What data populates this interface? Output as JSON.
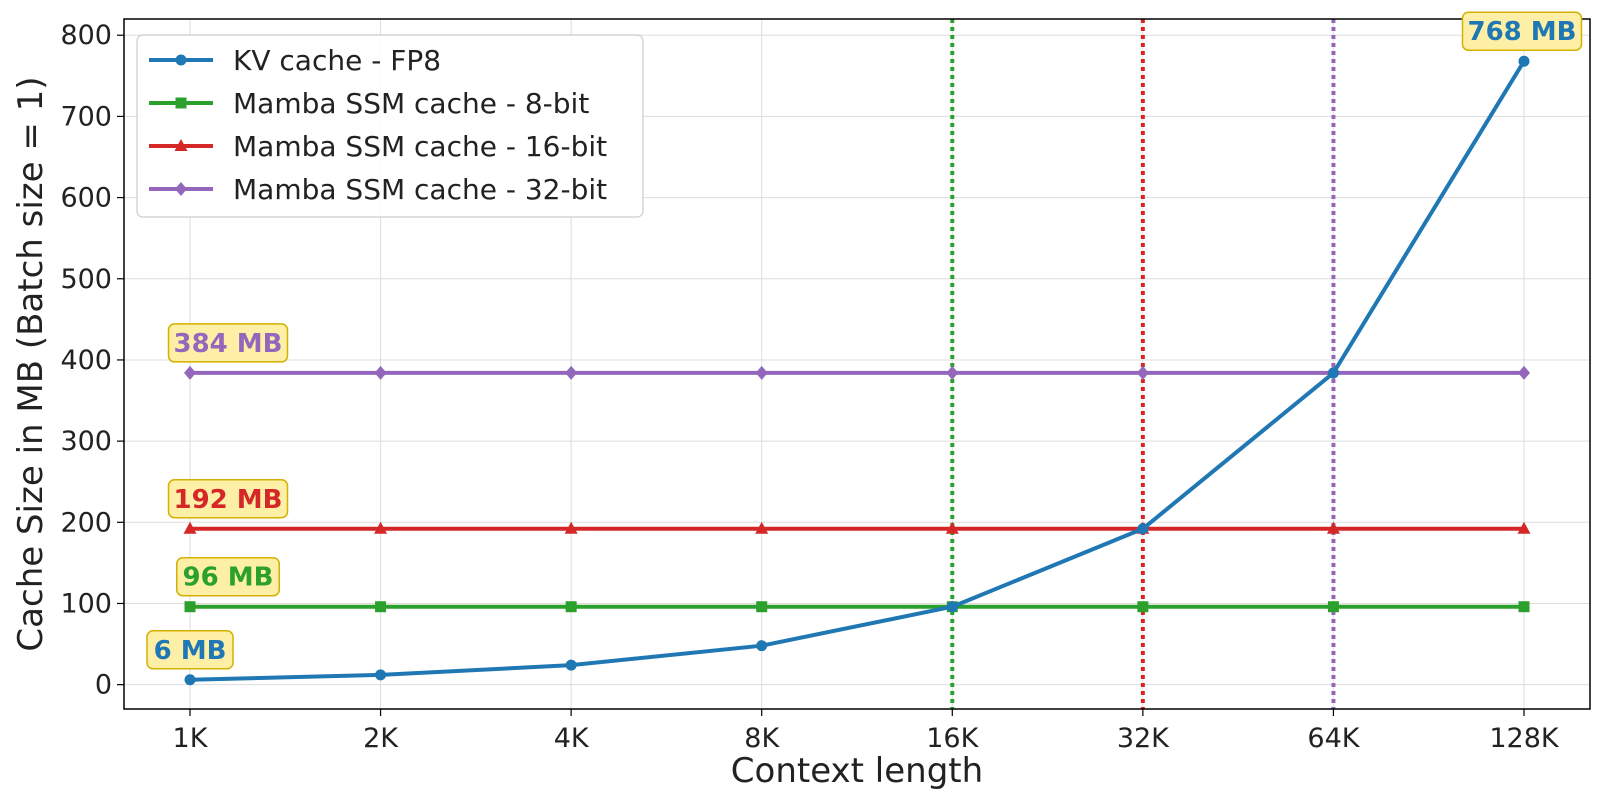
{
  "chart_data": {
    "type": "line",
    "xlabel": "Context length",
    "ylabel": "Cache Size in MB (Batch size = 1)",
    "x": [
      "1K",
      "2K",
      "4K",
      "8K",
      "16K",
      "32K",
      "64K",
      "128K"
    ],
    "x_scale": "log2",
    "ylim": [
      -30,
      820
    ],
    "yticks": [
      0,
      100,
      200,
      300,
      400,
      500,
      600,
      700,
      800
    ],
    "grid": true,
    "legend_position": "top-left",
    "series": [
      {
        "name": "KV cache - FP8",
        "color": "#1f77b4",
        "marker": "circle",
        "values": [
          6,
          12,
          24,
          48,
          96,
          192,
          384,
          768
        ]
      },
      {
        "name": "Mamba SSM cache - 8-bit",
        "color": "#2ca02c",
        "marker": "square",
        "values": [
          96,
          96,
          96,
          96,
          96,
          96,
          96,
          96
        ]
      },
      {
        "name": "Mamba SSM cache - 16-bit",
        "color": "#d62728",
        "marker": "triangle",
        "values": [
          192,
          192,
          192,
          192,
          192,
          192,
          192,
          192
        ]
      },
      {
        "name": "Mamba SSM cache - 32-bit",
        "color": "#9467bd",
        "marker": "diamond",
        "values": [
          384,
          384,
          384,
          384,
          384,
          384,
          384,
          384
        ]
      }
    ],
    "vlines": [
      {
        "x": "16K",
        "color": "#2ca02c",
        "style": "dotted"
      },
      {
        "x": "32K",
        "color": "#d62728",
        "style": "dotted"
      },
      {
        "x": "64K",
        "color": "#9467bd",
        "style": "dotted"
      }
    ],
    "annotations": [
      {
        "text": "6 MB",
        "x": "1K",
        "y": 6,
        "color": "#1f77b4"
      },
      {
        "text": "96 MB",
        "x": "1K",
        "y": 96,
        "color": "#2ca02c"
      },
      {
        "text": "192 MB",
        "x": "1K",
        "y": 192,
        "color": "#d62728"
      },
      {
        "text": "384 MB",
        "x": "1K",
        "y": 384,
        "color": "#9467bd"
      },
      {
        "text": "768 MB",
        "x": "128K",
        "y": 768,
        "color": "#1f77b4"
      }
    ],
    "annotation_box": {
      "fill": "#fdf0a6",
      "stroke": "#d4b000"
    }
  }
}
